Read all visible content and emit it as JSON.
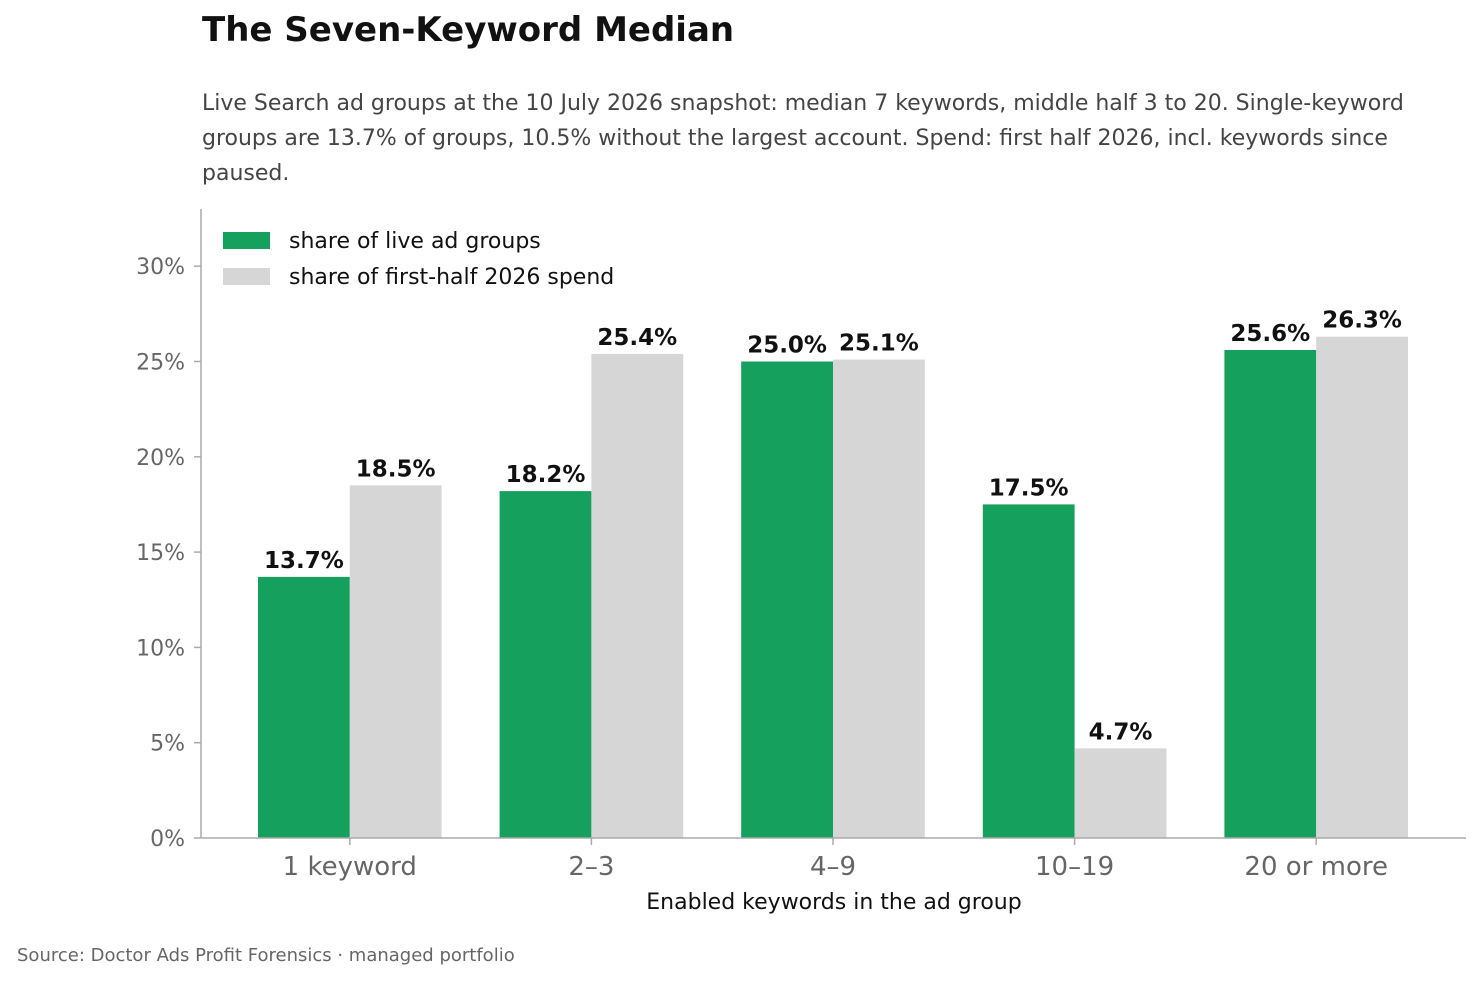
{
  "title": "The Seven-Keyword Median",
  "subtitle": "Live Search ad groups at the 10 July 2026 snapshot: median 7 keywords, middle half 3 to 20. Single-keyword groups are 13.7% of groups, 10.5% without the largest account. Spend: first half 2026, incl. keywords since paused.",
  "source": "Source: Doctor Ads Profit Forensics · managed portfolio",
  "colors": {
    "groups": "#16a05d",
    "spend": "#d6d6d6",
    "axis": "#aaaaaa"
  },
  "chart_data": {
    "type": "bar",
    "title": "The Seven-Keyword Median",
    "xlabel": "Enabled keywords in the ad group",
    "ylabel": "",
    "categories": [
      "1 keyword",
      "2–3",
      "4–9",
      "10–19",
      "20 or more"
    ],
    "ylim": [
      0,
      33
    ],
    "yticks": [
      0,
      5,
      10,
      15,
      20,
      25,
      30
    ],
    "ytick_labels": [
      "0%",
      "5%",
      "10%",
      "15%",
      "20%",
      "25%",
      "30%"
    ],
    "grid": false,
    "legend_position": "top-left",
    "series": [
      {
        "name": "share of live ad groups",
        "color": "#16a05d",
        "values": [
          13.7,
          18.2,
          25.0,
          17.5,
          25.6
        ],
        "labels": [
          "13.7%",
          "18.2%",
          "25.0%",
          "17.5%",
          "25.6%"
        ]
      },
      {
        "name": "share of first-half 2026 spend",
        "color": "#d6d6d6",
        "values": [
          18.5,
          25.4,
          25.1,
          4.7,
          26.3
        ],
        "labels": [
          "18.5%",
          "25.4%",
          "25.1%",
          "4.7%",
          "26.3%"
        ]
      }
    ]
  }
}
